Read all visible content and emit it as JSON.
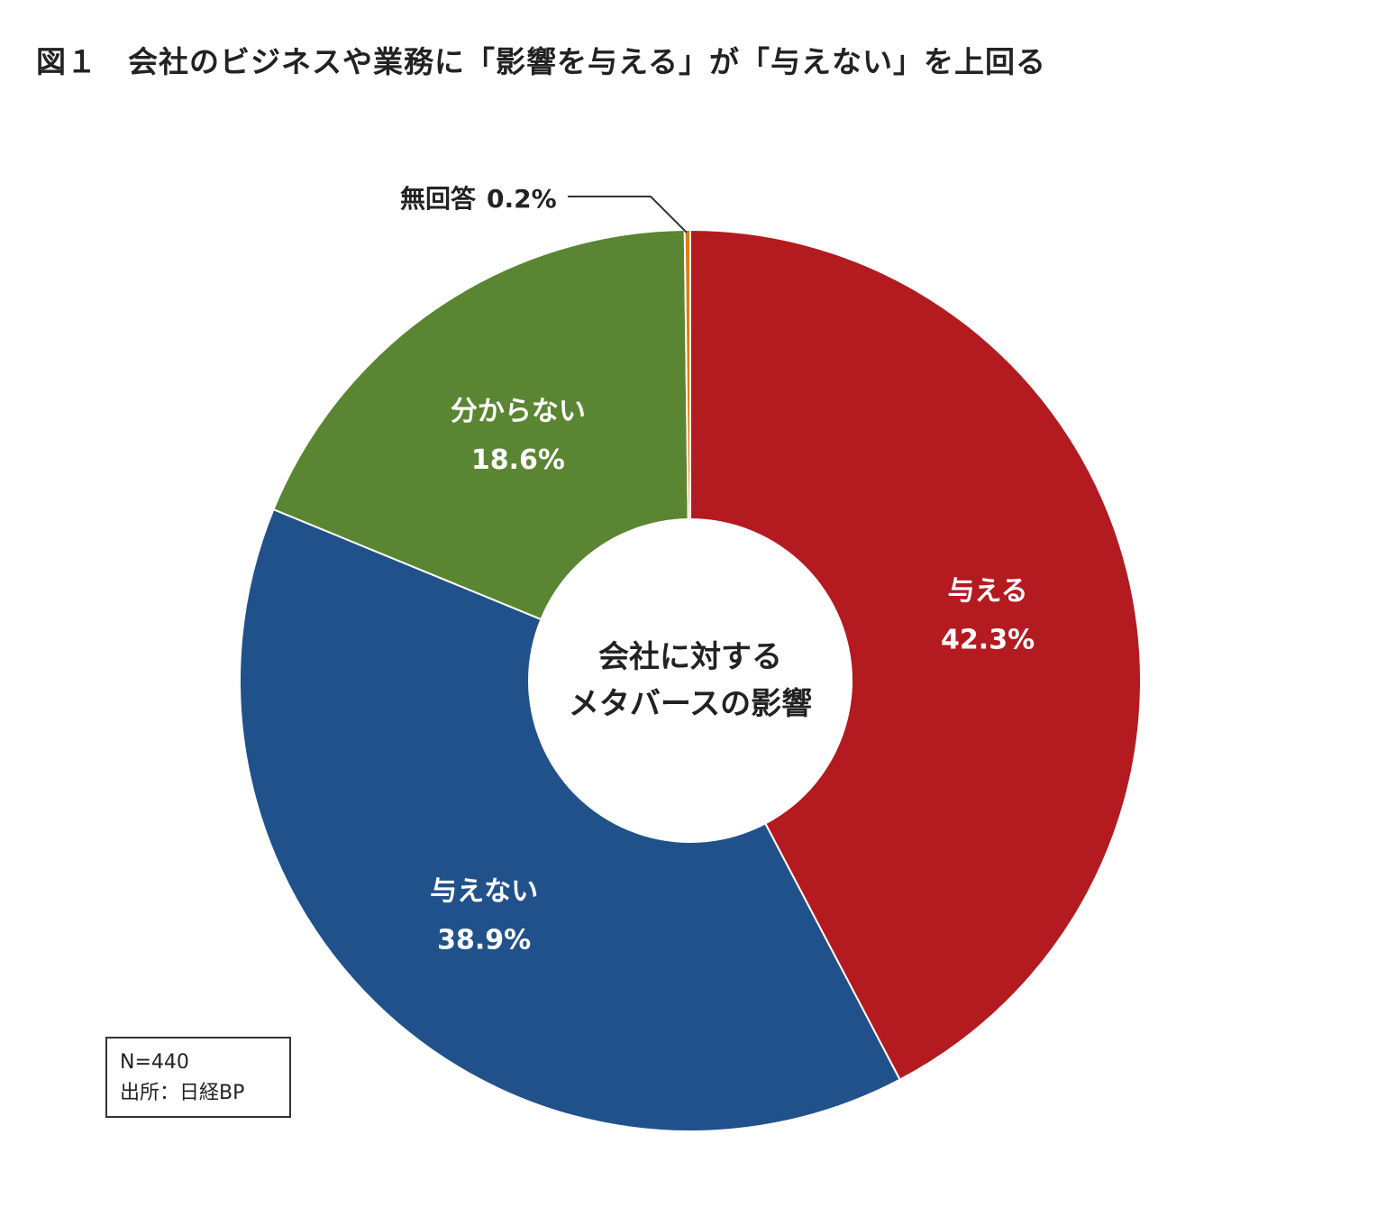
{
  "chart_data": {
    "type": "pie",
    "title": "図１　会社のビジネスや業務に「影響を与える」が「与えない」を上回る",
    "center_label": [
      "会社に対する",
      "メタバースの影響"
    ],
    "slices": [
      {
        "label": "与える",
        "value": 42.3,
        "value_label": "42.3%",
        "color": "#b31b20"
      },
      {
        "label": "与えない",
        "value": 38.9,
        "value_label": "38.9%",
        "color": "#21518b"
      },
      {
        "label": "分からない",
        "value": 18.6,
        "value_label": "18.6%",
        "color": "#5a8532"
      },
      {
        "label": "無回答",
        "value": 0.2,
        "value_label": "0.2%",
        "color": "#e07b1a"
      }
    ]
  },
  "note": {
    "sample": "N=440",
    "source": "出所：日経BP"
  }
}
